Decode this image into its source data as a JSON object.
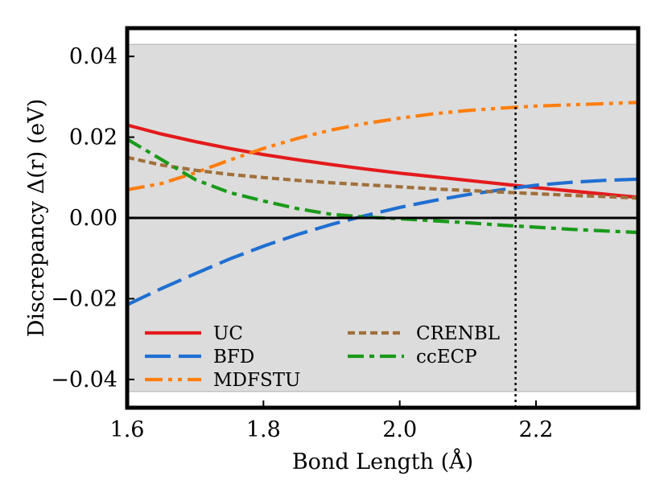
{
  "chart_data": {
    "type": "line",
    "xlabel": "Bond Length (Å)",
    "ylabel": "Discrepancy Δ(r) (eV)",
    "xlim": [
      1.6,
      2.35
    ],
    "ylim": [
      -0.047,
      0.047
    ],
    "xticks": [
      1.6,
      1.8,
      2.0,
      2.2
    ],
    "xtick_labels": [
      "1.6",
      "1.8",
      "2.0",
      "2.2"
    ],
    "yticks": [
      -0.04,
      -0.02,
      0.0,
      0.02,
      0.04
    ],
    "ytick_labels": [
      "−0.04",
      "−0.02",
      "0.00",
      "0.02",
      "0.04"
    ],
    "shaded_band": [
      -0.043,
      0.043
    ],
    "zero_line": 0.0,
    "vline_x": 2.17,
    "legend_location": "lower-left",
    "series": [
      {
        "name": "UC",
        "color": "#e41a1c",
        "dash": "solid",
        "x": [
          1.6,
          1.65,
          1.7,
          1.75,
          1.8,
          1.85,
          1.9,
          1.95,
          2.0,
          2.05,
          2.1,
          2.15,
          2.2,
          2.25,
          2.3,
          2.35
        ],
        "y": [
          0.023,
          0.0208,
          0.0189,
          0.0172,
          0.0157,
          0.0144,
          0.0132,
          0.0121,
          0.0111,
          0.0102,
          0.0093,
          0.0084,
          0.0075,
          0.0067,
          0.0059,
          0.0051
        ]
      },
      {
        "name": "BFD",
        "color": "#1f6fd1",
        "dash": "longdash",
        "x": [
          1.6,
          1.65,
          1.7,
          1.75,
          1.8,
          1.85,
          1.9,
          1.95,
          2.0,
          2.05,
          2.1,
          2.15,
          2.2,
          2.25,
          2.3,
          2.35
        ],
        "y": [
          -0.0215,
          -0.0175,
          -0.0138,
          -0.0102,
          -0.007,
          -0.0041,
          -0.0016,
          0.0006,
          0.0026,
          0.0043,
          0.0058,
          0.007,
          0.0081,
          0.0088,
          0.0093,
          0.0096
        ]
      },
      {
        "name": "MDFSTU",
        "color": "#ff7f0e",
        "dash": "dashdotdot",
        "x": [
          1.6,
          1.65,
          1.7,
          1.75,
          1.8,
          1.85,
          1.9,
          1.95,
          2.0,
          2.05,
          2.1,
          2.15,
          2.2,
          2.25,
          2.3,
          2.35
        ],
        "y": [
          0.007,
          0.0085,
          0.0112,
          0.0143,
          0.0172,
          0.0197,
          0.0218,
          0.0234,
          0.0247,
          0.0258,
          0.0266,
          0.0272,
          0.0277,
          0.028,
          0.0283,
          0.0286
        ]
      },
      {
        "name": "CRENBL",
        "color": "#a0703c",
        "dash": "dotted",
        "x": [
          1.6,
          1.65,
          1.7,
          1.75,
          1.8,
          1.85,
          1.9,
          1.95,
          2.0,
          2.05,
          2.1,
          2.15,
          2.2,
          2.25,
          2.3,
          2.35
        ],
        "y": [
          0.015,
          0.0131,
          0.0118,
          0.0108,
          0.01,
          0.0093,
          0.0087,
          0.0082,
          0.0077,
          0.0072,
          0.0068,
          0.0064,
          0.006,
          0.0056,
          0.0053,
          0.0049
        ]
      },
      {
        "name": "ccECP",
        "color": "#1a9a1a",
        "dash": "dashdot",
        "x": [
          1.6,
          1.65,
          1.7,
          1.75,
          1.8,
          1.85,
          1.9,
          1.95,
          2.0,
          2.05,
          2.1,
          2.15,
          2.2,
          2.25,
          2.3,
          2.35
        ],
        "y": [
          0.0195,
          0.0145,
          0.0095,
          0.0063,
          0.0042,
          0.0023,
          0.0009,
          0.0002,
          -0.0002,
          -0.0007,
          -0.0012,
          -0.0018,
          -0.0023,
          -0.0028,
          -0.0032,
          -0.0036
        ]
      }
    ]
  }
}
